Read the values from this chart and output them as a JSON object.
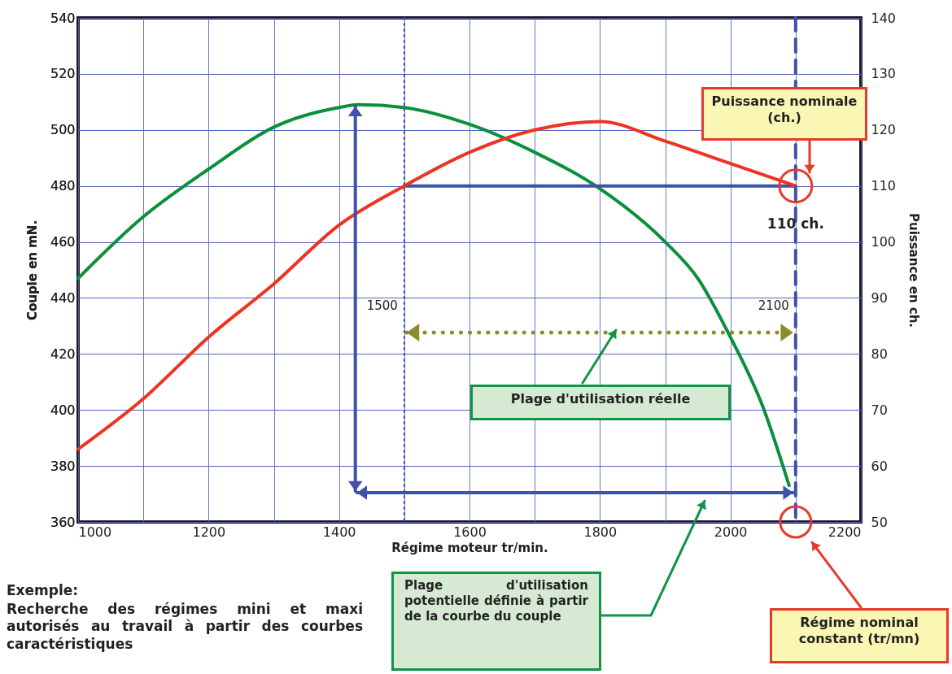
{
  "chart_data": {
    "type": "line",
    "xlabel": "Régime moteur tr/min.",
    "ylabel": "Couple en mN.",
    "y2label": "Puissance en ch.",
    "xlim": [
      1000,
      2200
    ],
    "xticks": [
      1000,
      {
        "value": 1100,
        "label": null
      },
      1200,
      {
        "value": 1300,
        "label": null
      },
      1400,
      {
        "value": 1500,
        "label": null
      },
      1600,
      {
        "value": 1700,
        "label": null
      },
      1800,
      {
        "value": 1900,
        "label": null
      },
      2000,
      {
        "value": 2100,
        "label": null
      },
      2200
    ],
    "ylim": [
      360,
      540
    ],
    "yticks": [
      360,
      380,
      400,
      420,
      440,
      460,
      480,
      500,
      520,
      540
    ],
    "y2lim": [
      50,
      140
    ],
    "y2ticks": [
      50,
      60,
      70,
      80,
      90,
      100,
      110,
      120,
      130,
      140
    ],
    "grid": true,
    "series": [
      {
        "color": "#0a8f3c",
        "x": [
          1000,
          1100,
          1200,
          1300,
          1400,
          1430,
          1500,
          1600,
          1700,
          1800,
          1900,
          1950,
          2000,
          2050,
          2090
        ],
        "values": [
          447,
          469,
          486,
          501,
          508,
          509,
          508,
          502,
          492,
          479,
          460,
          447,
          426,
          401,
          373
        ]
      },
      {
        "type": "line",
        "color": "#3f51a8",
        "x": [
          1500,
          2100
        ],
        "values": [
          480,
          480
        ]
      },
      {
        "color": "#ee3322",
        "axis": "y2",
        "x": [
          1000,
          1100,
          1200,
          1300,
          1400,
          1500,
          1600,
          1700,
          1800,
          1900,
          2000,
          2100
        ],
        "values": [
          63,
          72,
          83,
          92.5,
          103,
          110,
          116,
          120,
          121.5,
          118,
          114,
          110
        ]
      }
    ],
    "ref_lines": [
      {
        "axis": "x",
        "value": 1500,
        "label": "1500",
        "color": "#3f51a8",
        "line_style": "dotted"
      },
      {
        "axis": "x",
        "value": 2100,
        "label": "2100",
        "color": "#3f51a8",
        "line_style": "dashed"
      }
    ],
    "annotations": [
      "Puissance nominale (ch.)",
      {
        "text": "110 ch.",
        "x": 2100,
        "y": 480
      },
      "Plage d'utilisation réelle",
      "Plage d'utilisation potentielle définie à partir de la courbe du couple",
      "Régime nominal constant (tr/mn)",
      "Exemple:",
      "Recherche des régimes mini et maxi autorisés au travail à partir des courbes caractéristiques"
    ]
  }
}
